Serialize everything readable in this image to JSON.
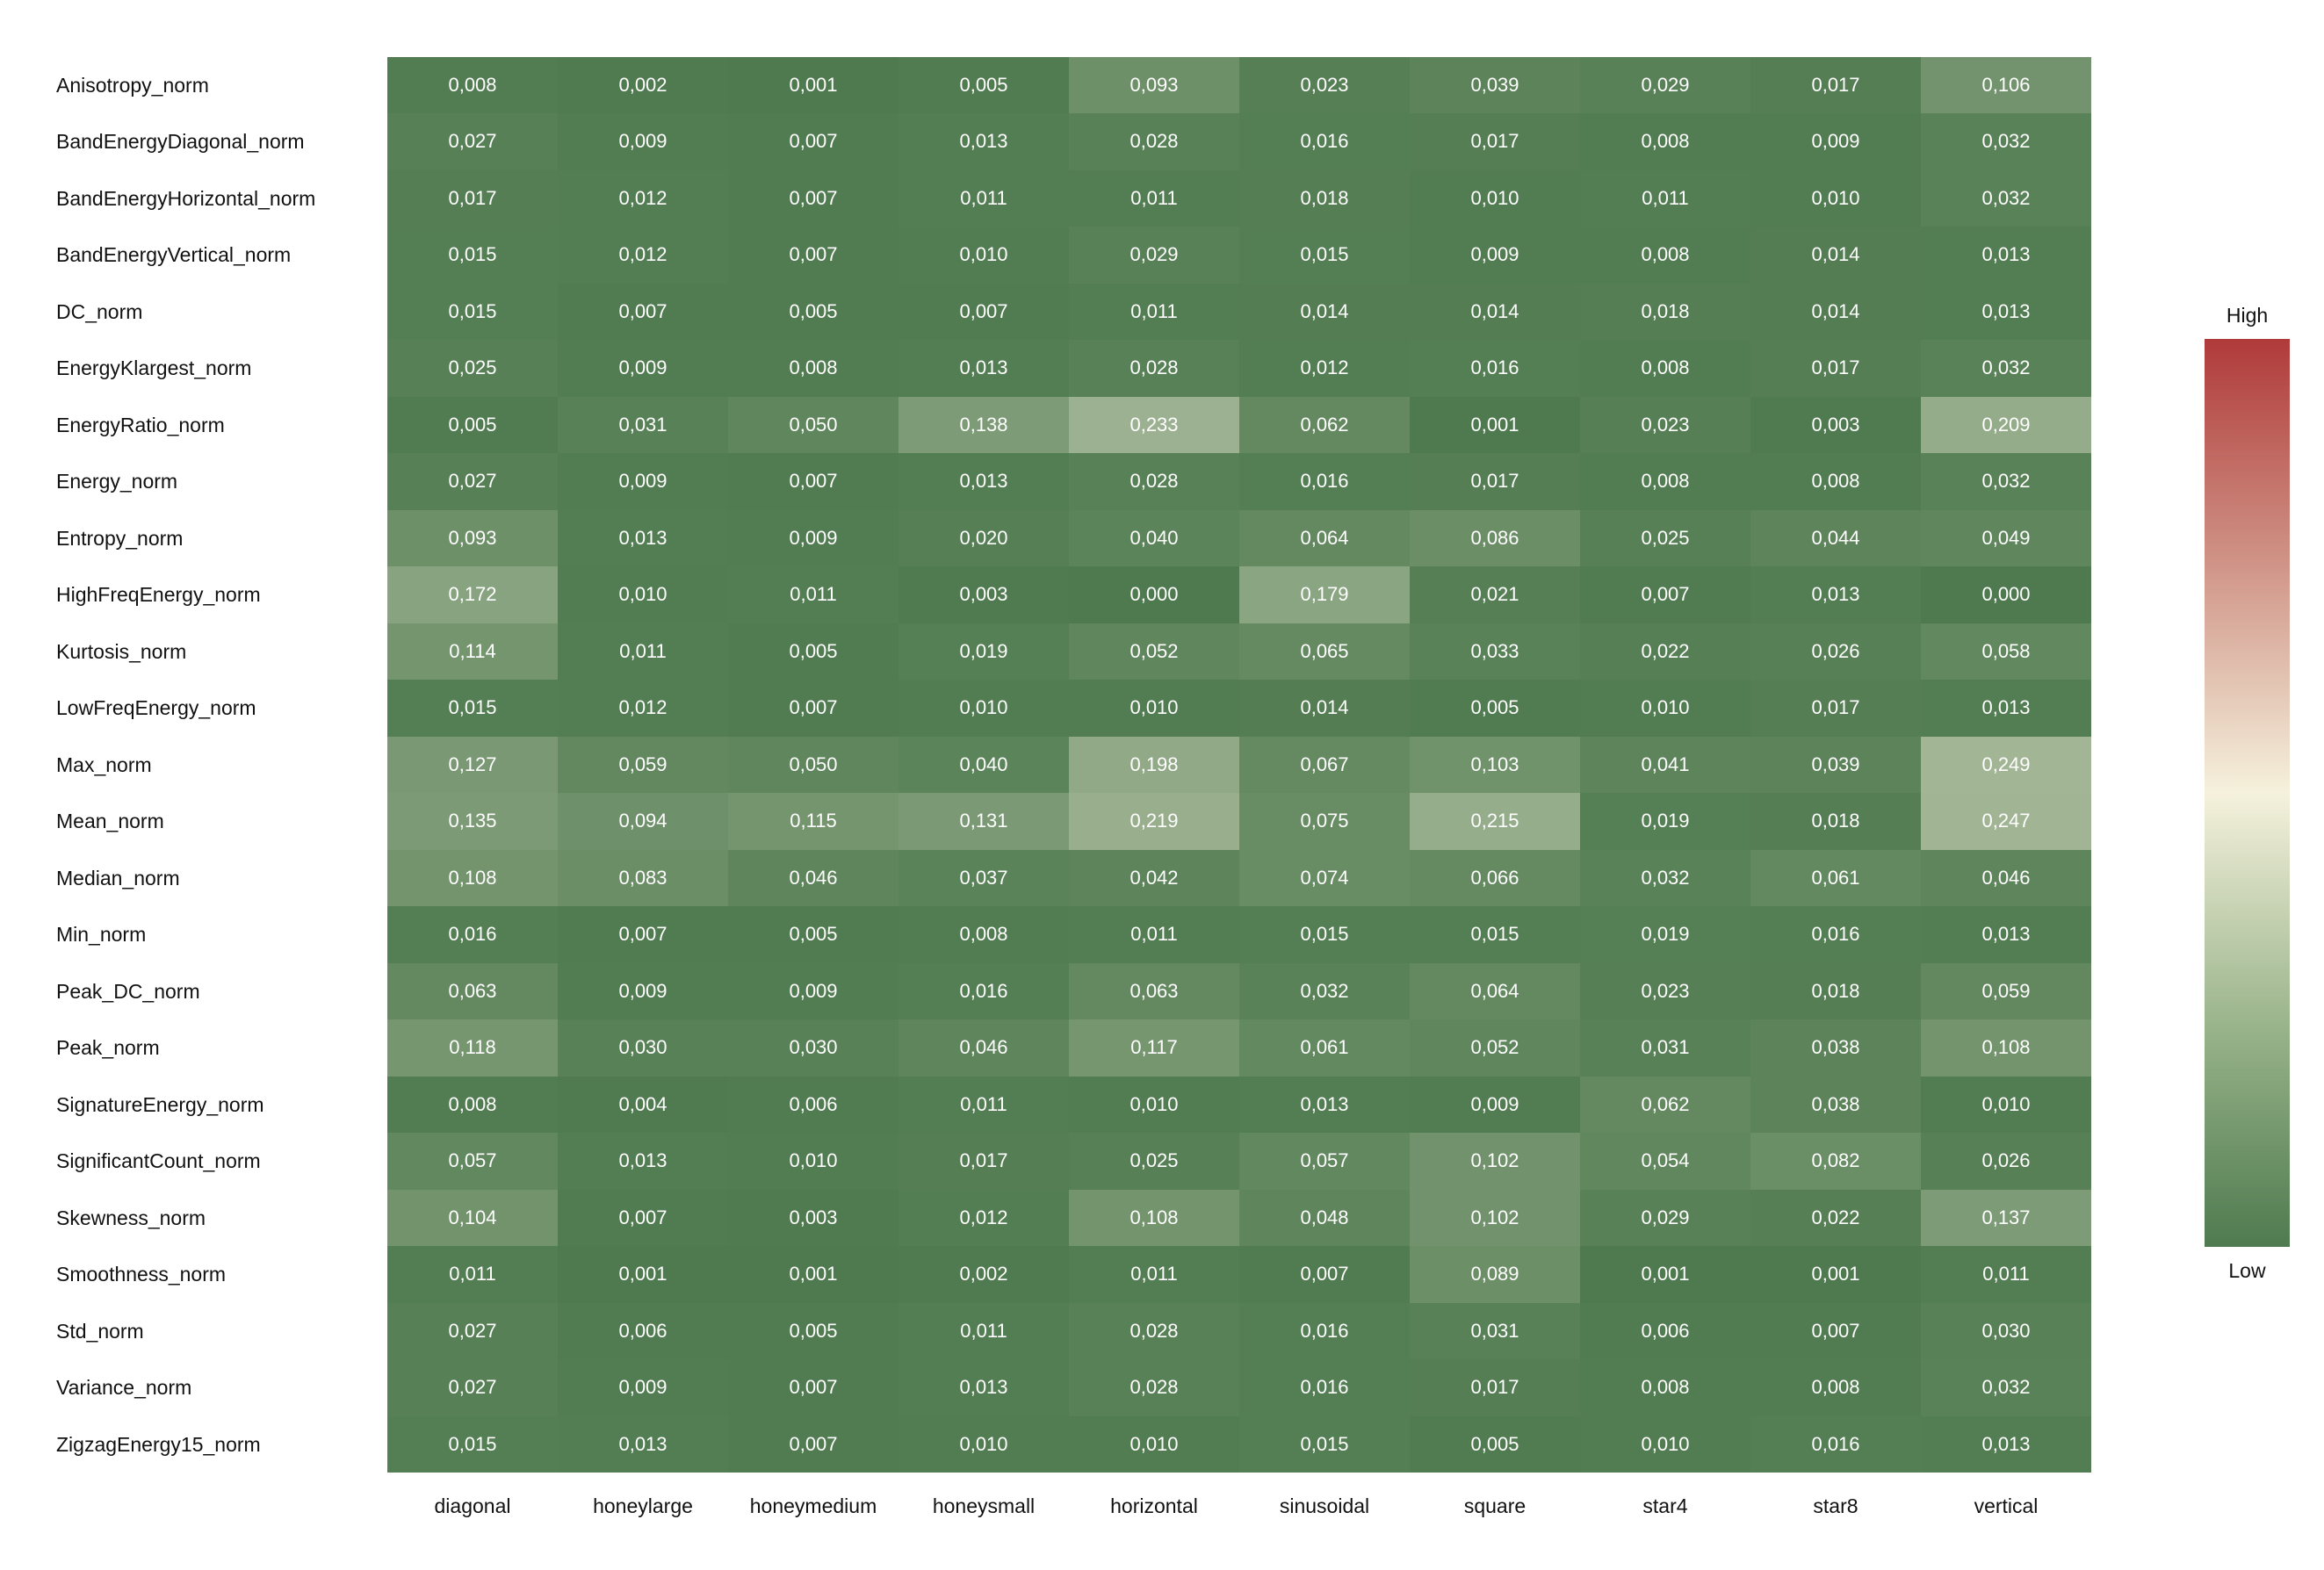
{
  "chart_data": {
    "type": "heatmap",
    "rows": [
      "Anisotropy_norm",
      "BandEnergyDiagonal_norm",
      "BandEnergyHorizontal_norm",
      "BandEnergyVertical_norm",
      "DC_norm",
      "EnergyKlargest_norm",
      "EnergyRatio_norm",
      "Energy_norm",
      "Entropy_norm",
      "HighFreqEnergy_norm",
      "Kurtosis_norm",
      "LowFreqEnergy_norm",
      "Max_norm",
      "Mean_norm",
      "Median_norm",
      "Min_norm",
      "Peak_DC_norm",
      "Peak_norm",
      "SignatureEnergy_norm",
      "SignificantCount_norm",
      "Skewness_norm",
      "Smoothness_norm",
      "Std_norm",
      "Variance_norm",
      "ZigzagEnergy15_norm"
    ],
    "columns": [
      "diagonal",
      "honeylarge",
      "honeymedium",
      "honeysmall",
      "horizontal",
      "sinusoidal",
      "square",
      "star4",
      "star8",
      "vertical"
    ],
    "values": [
      [
        "0,008",
        "0,002",
        "0,001",
        "0,005",
        "0,093",
        "0,023",
        "0,039",
        "0,029",
        "0,017",
        "0,106"
      ],
      [
        "0,027",
        "0,009",
        "0,007",
        "0,013",
        "0,028",
        "0,016",
        "0,017",
        "0,008",
        "0,009",
        "0,032"
      ],
      [
        "0,017",
        "0,012",
        "0,007",
        "0,011",
        "0,011",
        "0,018",
        "0,010",
        "0,011",
        "0,010",
        "0,032"
      ],
      [
        "0,015",
        "0,012",
        "0,007",
        "0,010",
        "0,029",
        "0,015",
        "0,009",
        "0,008",
        "0,014",
        "0,013"
      ],
      [
        "0,015",
        "0,007",
        "0,005",
        "0,007",
        "0,011",
        "0,014",
        "0,014",
        "0,018",
        "0,014",
        "0,013"
      ],
      [
        "0,025",
        "0,009",
        "0,008",
        "0,013",
        "0,028",
        "0,012",
        "0,016",
        "0,008",
        "0,017",
        "0,032"
      ],
      [
        "0,005",
        "0,031",
        "0,050",
        "0,138",
        "0,233",
        "0,062",
        "0,001",
        "0,023",
        "0,003",
        "0,209"
      ],
      [
        "0,027",
        "0,009",
        "0,007",
        "0,013",
        "0,028",
        "0,016",
        "0,017",
        "0,008",
        "0,008",
        "0,032"
      ],
      [
        "0,093",
        "0,013",
        "0,009",
        "0,020",
        "0,040",
        "0,064",
        "0,086",
        "0,025",
        "0,044",
        "0,049"
      ],
      [
        "0,172",
        "0,010",
        "0,011",
        "0,003",
        "0,000",
        "0,179",
        "0,021",
        "0,007",
        "0,013",
        "0,000"
      ],
      [
        "0,114",
        "0,011",
        "0,005",
        "0,019",
        "0,052",
        "0,065",
        "0,033",
        "0,022",
        "0,026",
        "0,058"
      ],
      [
        "0,015",
        "0,012",
        "0,007",
        "0,010",
        "0,010",
        "0,014",
        "0,005",
        "0,010",
        "0,017",
        "0,013"
      ],
      [
        "0,127",
        "0,059",
        "0,050",
        "0,040",
        "0,198",
        "0,067",
        "0,103",
        "0,041",
        "0,039",
        "0,249"
      ],
      [
        "0,135",
        "0,094",
        "0,115",
        "0,131",
        "0,219",
        "0,075",
        "0,215",
        "0,019",
        "0,018",
        "0,247"
      ],
      [
        "0,108",
        "0,083",
        "0,046",
        "0,037",
        "0,042",
        "0,074",
        "0,066",
        "0,032",
        "0,061",
        "0,046"
      ],
      [
        "0,016",
        "0,007",
        "0,005",
        "0,008",
        "0,011",
        "0,015",
        "0,015",
        "0,019",
        "0,016",
        "0,013"
      ],
      [
        "0,063",
        "0,009",
        "0,009",
        "0,016",
        "0,063",
        "0,032",
        "0,064",
        "0,023",
        "0,018",
        "0,059"
      ],
      [
        "0,118",
        "0,030",
        "0,030",
        "0,046",
        "0,117",
        "0,061",
        "0,052",
        "0,031",
        "0,038",
        "0,108"
      ],
      [
        "0,008",
        "0,004",
        "0,006",
        "0,011",
        "0,010",
        "0,013",
        "0,009",
        "0,062",
        "0,038",
        "0,010"
      ],
      [
        "0,057",
        "0,013",
        "0,010",
        "0,017",
        "0,025",
        "0,057",
        "0,102",
        "0,054",
        "0,082",
        "0,026"
      ],
      [
        "0,104",
        "0,007",
        "0,003",
        "0,012",
        "0,108",
        "0,048",
        "0,102",
        "0,029",
        "0,022",
        "0,137"
      ],
      [
        "0,011",
        "0,001",
        "0,001",
        "0,002",
        "0,011",
        "0,007",
        "0,089",
        "0,001",
        "0,001",
        "0,011"
      ],
      [
        "0,027",
        "0,006",
        "0,005",
        "0,011",
        "0,028",
        "0,016",
        "0,031",
        "0,006",
        "0,007",
        "0,030"
      ],
      [
        "0,027",
        "0,009",
        "0,007",
        "0,013",
        "0,028",
        "0,016",
        "0,017",
        "0,008",
        "0,008",
        "0,032"
      ],
      [
        "0,015",
        "0,013",
        "0,007",
        "0,010",
        "0,010",
        "0,015",
        "0,005",
        "0,010",
        "0,016",
        "0,013"
      ]
    ],
    "legend": {
      "high_label": "High",
      "low_label": "Low",
      "placement": "right"
    },
    "colors": {
      "low": "#4f7a4f",
      "mid": "#f5f1dc",
      "high": "#b03a3a"
    },
    "scale_max": 0.5
  }
}
